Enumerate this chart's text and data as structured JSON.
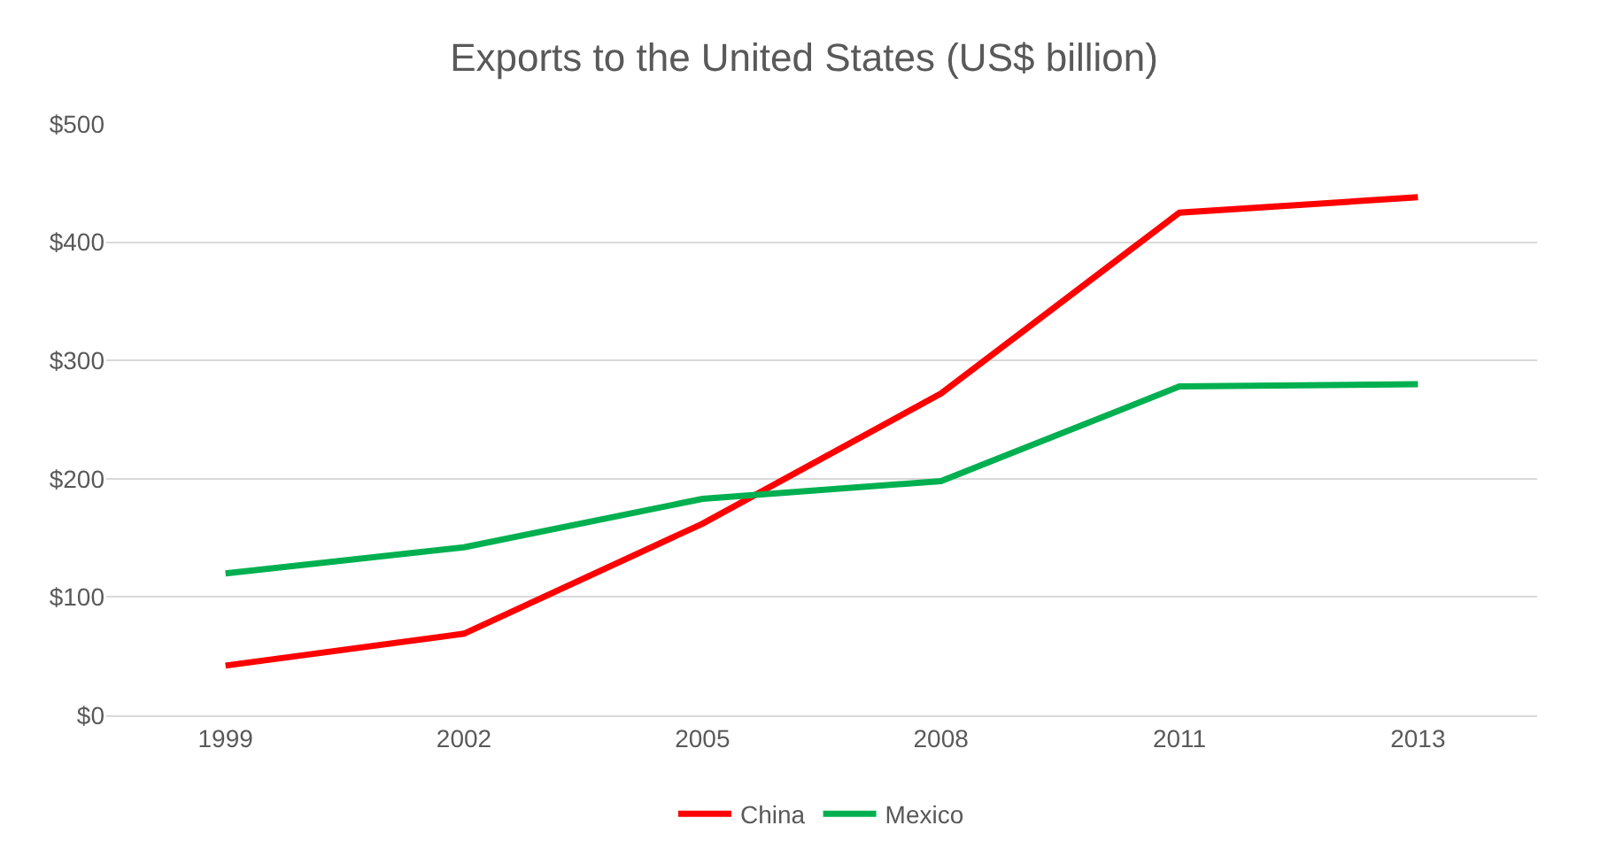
{
  "chart_data": {
    "type": "line",
    "title": "Exports to the United States (US$ billion)",
    "categories": [
      "1999",
      "2002",
      "2005",
      "2008",
      "2011",
      "2013"
    ],
    "series": [
      {
        "name": "China",
        "color": "#ff0000",
        "values": [
          42,
          69,
          162,
          272,
          425,
          438
        ]
      },
      {
        "name": "Mexico",
        "color": "#00b050",
        "values": [
          120,
          142,
          183,
          198,
          278,
          280
        ]
      }
    ],
    "ylim": [
      0,
      500
    ],
    "yticks": [
      {
        "value": 0,
        "label": "$0"
      },
      {
        "value": 100,
        "label": "$100"
      },
      {
        "value": 200,
        "label": "$200"
      },
      {
        "value": 300,
        "label": "$300"
      },
      {
        "value": 400,
        "label": "$400"
      },
      {
        "value": 500,
        "label": "$500"
      }
    ],
    "grid": "y",
    "legend": "bottom",
    "marker": "none",
    "line_style": "solid"
  }
}
